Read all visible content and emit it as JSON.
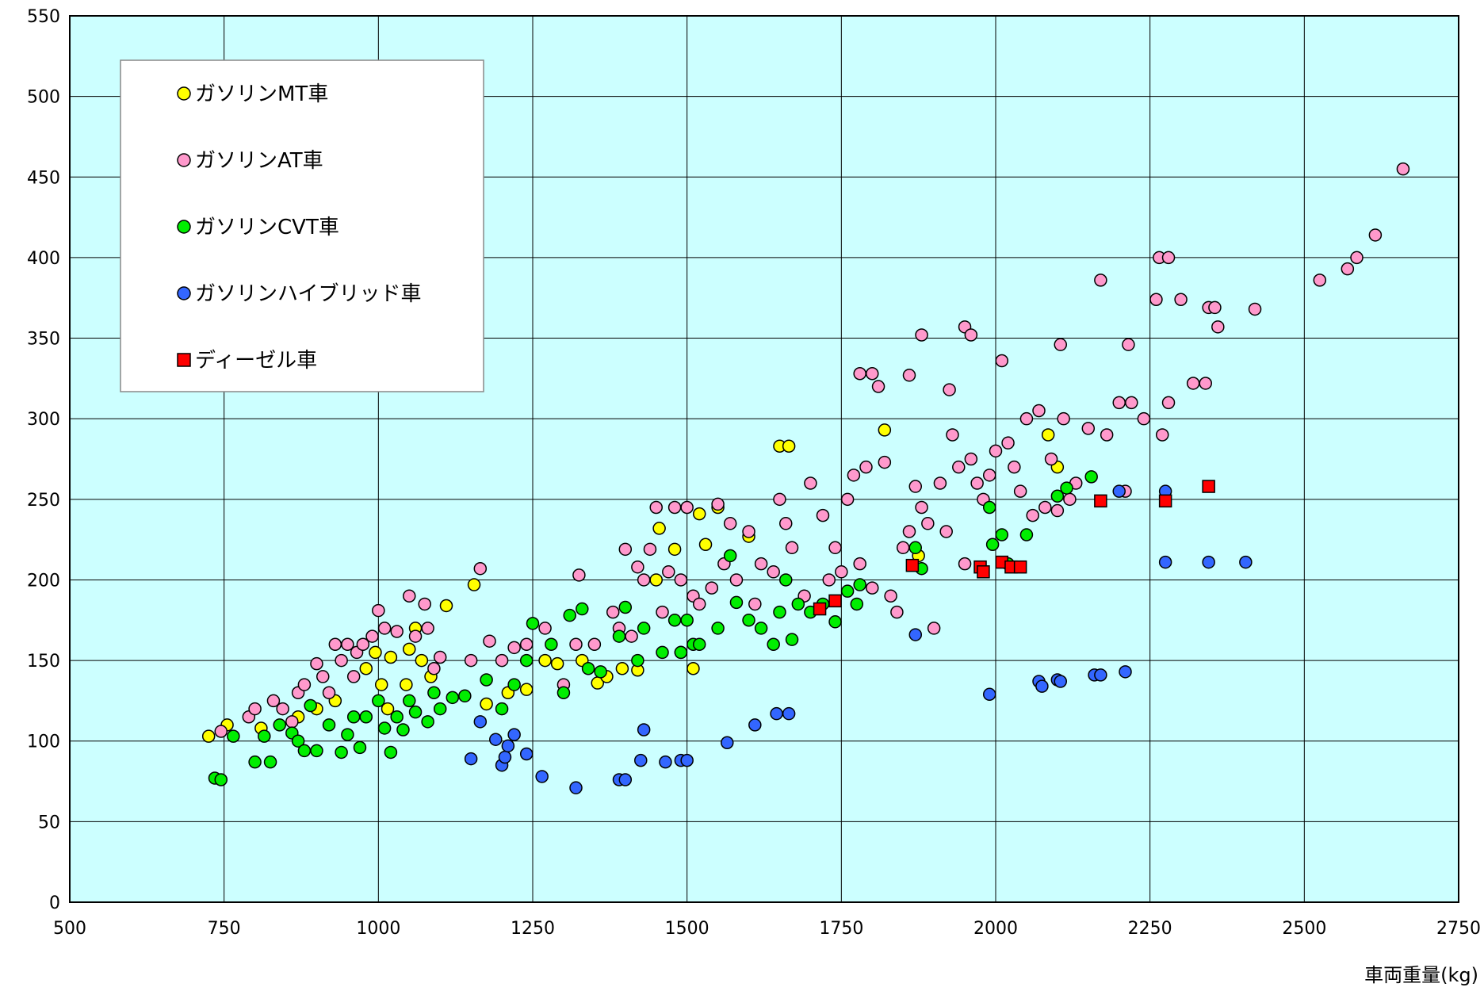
{
  "chart_data": {
    "type": "scatter",
    "title": "",
    "xlabel": "車両重量(kg)",
    "ylabel": "",
    "xlim": [
      500,
      2750
    ],
    "ylim": [
      0,
      550
    ],
    "xticks": [
      500,
      750,
      1000,
      1250,
      1500,
      1750,
      2000,
      2250,
      2500,
      2750
    ],
    "yticks": [
      0,
      50,
      100,
      150,
      200,
      250,
      300,
      350,
      400,
      450,
      500,
      550
    ],
    "grid": true,
    "legend_position": "top-left",
    "plot_background": "#ccffff",
    "series": [
      {
        "name": "ガソリンMT車",
        "marker": "circle",
        "color": "#ffff00",
        "points": [
          [
            725,
            103
          ],
          [
            755,
            110
          ],
          [
            810,
            108
          ],
          [
            870,
            115
          ],
          [
            900,
            120
          ],
          [
            930,
            125
          ],
          [
            980,
            145
          ],
          [
            995,
            155
          ],
          [
            1005,
            135
          ],
          [
            1015,
            120
          ],
          [
            1020,
            152
          ],
          [
            1045,
            135
          ],
          [
            1050,
            157
          ],
          [
            1060,
            170
          ],
          [
            1070,
            150
          ],
          [
            1085,
            140
          ],
          [
            1110,
            184
          ],
          [
            1155,
            197
          ],
          [
            1175,
            123
          ],
          [
            1210,
            130
          ],
          [
            1240,
            132
          ],
          [
            1270,
            150
          ],
          [
            1290,
            148
          ],
          [
            1330,
            150
          ],
          [
            1355,
            136
          ],
          [
            1370,
            140
          ],
          [
            1395,
            145
          ],
          [
            1420,
            144
          ],
          [
            1450,
            200
          ],
          [
            1455,
            232
          ],
          [
            1480,
            219
          ],
          [
            1490,
            155
          ],
          [
            1510,
            145
          ],
          [
            1520,
            241
          ],
          [
            1530,
            222
          ],
          [
            1550,
            245
          ],
          [
            1600,
            227
          ],
          [
            1650,
            283
          ],
          [
            1665,
            283
          ],
          [
            1820,
            293
          ],
          [
            1875,
            215
          ],
          [
            2085,
            290
          ],
          [
            2100,
            270
          ]
        ]
      },
      {
        "name": "ガソリンAT車",
        "marker": "circle",
        "color": "#ff99cc",
        "points": [
          [
            745,
            106
          ],
          [
            790,
            115
          ],
          [
            800,
            120
          ],
          [
            830,
            125
          ],
          [
            845,
            120
          ],
          [
            860,
            112
          ],
          [
            870,
            130
          ],
          [
            880,
            135
          ],
          [
            900,
            148
          ],
          [
            910,
            140
          ],
          [
            920,
            130
          ],
          [
            930,
            160
          ],
          [
            940,
            150
          ],
          [
            950,
            160
          ],
          [
            960,
            140
          ],
          [
            965,
            155
          ],
          [
            975,
            160
          ],
          [
            990,
            165
          ],
          [
            1000,
            181
          ],
          [
            1010,
            170
          ],
          [
            1030,
            168
          ],
          [
            1050,
            190
          ],
          [
            1060,
            165
          ],
          [
            1075,
            185
          ],
          [
            1080,
            170
          ],
          [
            1090,
            145
          ],
          [
            1100,
            152
          ],
          [
            1150,
            150
          ],
          [
            1165,
            207
          ],
          [
            1180,
            162
          ],
          [
            1200,
            150
          ],
          [
            1220,
            158
          ],
          [
            1240,
            160
          ],
          [
            1270,
            170
          ],
          [
            1300,
            135
          ],
          [
            1320,
            160
          ],
          [
            1325,
            203
          ],
          [
            1350,
            160
          ],
          [
            1380,
            180
          ],
          [
            1390,
            170
          ],
          [
            1400,
            219
          ],
          [
            1410,
            165
          ],
          [
            1420,
            208
          ],
          [
            1430,
            200
          ],
          [
            1440,
            219
          ],
          [
            1450,
            245
          ],
          [
            1460,
            180
          ],
          [
            1470,
            205
          ],
          [
            1480,
            245
          ],
          [
            1490,
            200
          ],
          [
            1500,
            245
          ],
          [
            1510,
            190
          ],
          [
            1520,
            185
          ],
          [
            1540,
            195
          ],
          [
            1550,
            247
          ],
          [
            1560,
            210
          ],
          [
            1570,
            235
          ],
          [
            1580,
            200
          ],
          [
            1600,
            230
          ],
          [
            1610,
            185
          ],
          [
            1620,
            210
          ],
          [
            1640,
            205
          ],
          [
            1650,
            250
          ],
          [
            1660,
            235
          ],
          [
            1670,
            220
          ],
          [
            1690,
            190
          ],
          [
            1700,
            260
          ],
          [
            1720,
            240
          ],
          [
            1730,
            200
          ],
          [
            1740,
            220
          ],
          [
            1750,
            205
          ],
          [
            1760,
            250
          ],
          [
            1770,
            265
          ],
          [
            1780,
            210
          ],
          [
            1790,
            270
          ],
          [
            1800,
            195
          ],
          [
            1810,
            320
          ],
          [
            1820,
            273
          ],
          [
            1830,
            190
          ],
          [
            1840,
            180
          ],
          [
            1850,
            220
          ],
          [
            1860,
            230
          ],
          [
            1870,
            258
          ],
          [
            1880,
            245
          ],
          [
            1890,
            235
          ],
          [
            1900,
            170
          ],
          [
            1910,
            260
          ],
          [
            1920,
            230
          ],
          [
            1930,
            290
          ],
          [
            1940,
            270
          ],
          [
            1950,
            210
          ],
          [
            1960,
            275
          ],
          [
            1970,
            260
          ],
          [
            1980,
            250
          ],
          [
            1990,
            265
          ],
          [
            2000,
            280
          ],
          [
            2010,
            336
          ],
          [
            2020,
            285
          ],
          [
            2030,
            270
          ],
          [
            2040,
            255
          ],
          [
            2050,
            300
          ],
          [
            2060,
            240
          ],
          [
            2070,
            305
          ],
          [
            2080,
            245
          ],
          [
            2090,
            275
          ],
          [
            2100,
            243
          ],
          [
            2110,
            300
          ],
          [
            2120,
            250
          ],
          [
            2130,
            260
          ],
          [
            2150,
            294
          ],
          [
            2170,
            386
          ],
          [
            2180,
            290
          ],
          [
            2200,
            310
          ],
          [
            2210,
            255
          ],
          [
            2220,
            310
          ],
          [
            2240,
            300
          ],
          [
            2260,
            374
          ],
          [
            2270,
            290
          ],
          [
            2280,
            310
          ],
          [
            2300,
            374
          ],
          [
            2320,
            322
          ],
          [
            2340,
            322
          ],
          [
            2345,
            369
          ],
          [
            2355,
            369
          ],
          [
            2360,
            357
          ],
          [
            2420,
            368
          ],
          [
            2525,
            386
          ],
          [
            2570,
            393
          ],
          [
            2585,
            400
          ],
          [
            2615,
            414
          ],
          [
            2660,
            455
          ],
          [
            2265,
            400
          ],
          [
            2280,
            400
          ],
          [
            1880,
            352
          ],
          [
            1950,
            357
          ],
          [
            1960,
            352
          ],
          [
            2105,
            346
          ],
          [
            2215,
            346
          ],
          [
            1780,
            328
          ],
          [
            1800,
            328
          ],
          [
            1860,
            327
          ],
          [
            1925,
            318
          ]
        ]
      },
      {
        "name": "ガソリンCVT車",
        "marker": "circle",
        "color": "#00ee00",
        "points": [
          [
            735,
            77
          ],
          [
            745,
            76
          ],
          [
            765,
            103
          ],
          [
            800,
            87
          ],
          [
            815,
            103
          ],
          [
            825,
            87
          ],
          [
            840,
            110
          ],
          [
            860,
            105
          ],
          [
            870,
            100
          ],
          [
            880,
            94
          ],
          [
            890,
            122
          ],
          [
            900,
            94
          ],
          [
            920,
            110
          ],
          [
            940,
            93
          ],
          [
            950,
            104
          ],
          [
            960,
            115
          ],
          [
            970,
            96
          ],
          [
            980,
            115
          ],
          [
            1000,
            125
          ],
          [
            1010,
            108
          ],
          [
            1020,
            93
          ],
          [
            1030,
            115
          ],
          [
            1040,
            107
          ],
          [
            1050,
            125
          ],
          [
            1060,
            118
          ],
          [
            1080,
            112
          ],
          [
            1090,
            130
          ],
          [
            1100,
            120
          ],
          [
            1120,
            127
          ],
          [
            1140,
            128
          ],
          [
            1175,
            138
          ],
          [
            1200,
            120
          ],
          [
            1220,
            135
          ],
          [
            1240,
            150
          ],
          [
            1250,
            173
          ],
          [
            1280,
            160
          ],
          [
            1300,
            130
          ],
          [
            1310,
            178
          ],
          [
            1330,
            182
          ],
          [
            1340,
            145
          ],
          [
            1360,
            143
          ],
          [
            1390,
            165
          ],
          [
            1400,
            183
          ],
          [
            1420,
            150
          ],
          [
            1430,
            170
          ],
          [
            1460,
            155
          ],
          [
            1480,
            175
          ],
          [
            1490,
            155
          ],
          [
            1500,
            175
          ],
          [
            1510,
            160
          ],
          [
            1520,
            160
          ],
          [
            1550,
            170
          ],
          [
            1570,
            215
          ],
          [
            1580,
            186
          ],
          [
            1600,
            175
          ],
          [
            1620,
            170
          ],
          [
            1640,
            160
          ],
          [
            1650,
            180
          ],
          [
            1660,
            200
          ],
          [
            1670,
            163
          ],
          [
            1680,
            185
          ],
          [
            1700,
            180
          ],
          [
            1720,
            185
          ],
          [
            1740,
            174
          ],
          [
            1760,
            193
          ],
          [
            1775,
            185
          ],
          [
            1780,
            197
          ],
          [
            1870,
            220
          ],
          [
            1880,
            207
          ],
          [
            1990,
            245
          ],
          [
            1995,
            222
          ],
          [
            2010,
            228
          ],
          [
            2020,
            210
          ],
          [
            2050,
            228
          ],
          [
            2100,
            252
          ],
          [
            2115,
            257
          ],
          [
            2155,
            264
          ]
        ]
      },
      {
        "name": "ガソリンハイブリッド車",
        "marker": "circle",
        "color": "#3366ff",
        "points": [
          [
            1150,
            89
          ],
          [
            1165,
            112
          ],
          [
            1190,
            101
          ],
          [
            1200,
            85
          ],
          [
            1205,
            90
          ],
          [
            1210,
            97
          ],
          [
            1220,
            104
          ],
          [
            1240,
            92
          ],
          [
            1265,
            78
          ],
          [
            1320,
            71
          ],
          [
            1390,
            76
          ],
          [
            1400,
            76
          ],
          [
            1425,
            88
          ],
          [
            1430,
            107
          ],
          [
            1465,
            87
          ],
          [
            1490,
            88
          ],
          [
            1500,
            88
          ],
          [
            1565,
            99
          ],
          [
            1610,
            110
          ],
          [
            1645,
            117
          ],
          [
            1665,
            117
          ],
          [
            1870,
            166
          ],
          [
            1990,
            129
          ],
          [
            2070,
            137
          ],
          [
            2075,
            134
          ],
          [
            2100,
            138
          ],
          [
            2105,
            137
          ],
          [
            2160,
            141
          ],
          [
            2170,
            141
          ],
          [
            2210,
            143
          ],
          [
            2200,
            255
          ],
          [
            2275,
            255
          ],
          [
            2275,
            211
          ],
          [
            2345,
            211
          ],
          [
            2405,
            211
          ]
        ]
      },
      {
        "name": "ディーゼル車",
        "marker": "square",
        "color": "#ff0000",
        "points": [
          [
            1715,
            182
          ],
          [
            1740,
            187
          ],
          [
            1865,
            209
          ],
          [
            1975,
            208
          ],
          [
            1980,
            205
          ],
          [
            2010,
            211
          ],
          [
            2025,
            208
          ],
          [
            2040,
            208
          ],
          [
            2170,
            249
          ],
          [
            2275,
            249
          ],
          [
            2345,
            258
          ]
        ]
      }
    ]
  }
}
